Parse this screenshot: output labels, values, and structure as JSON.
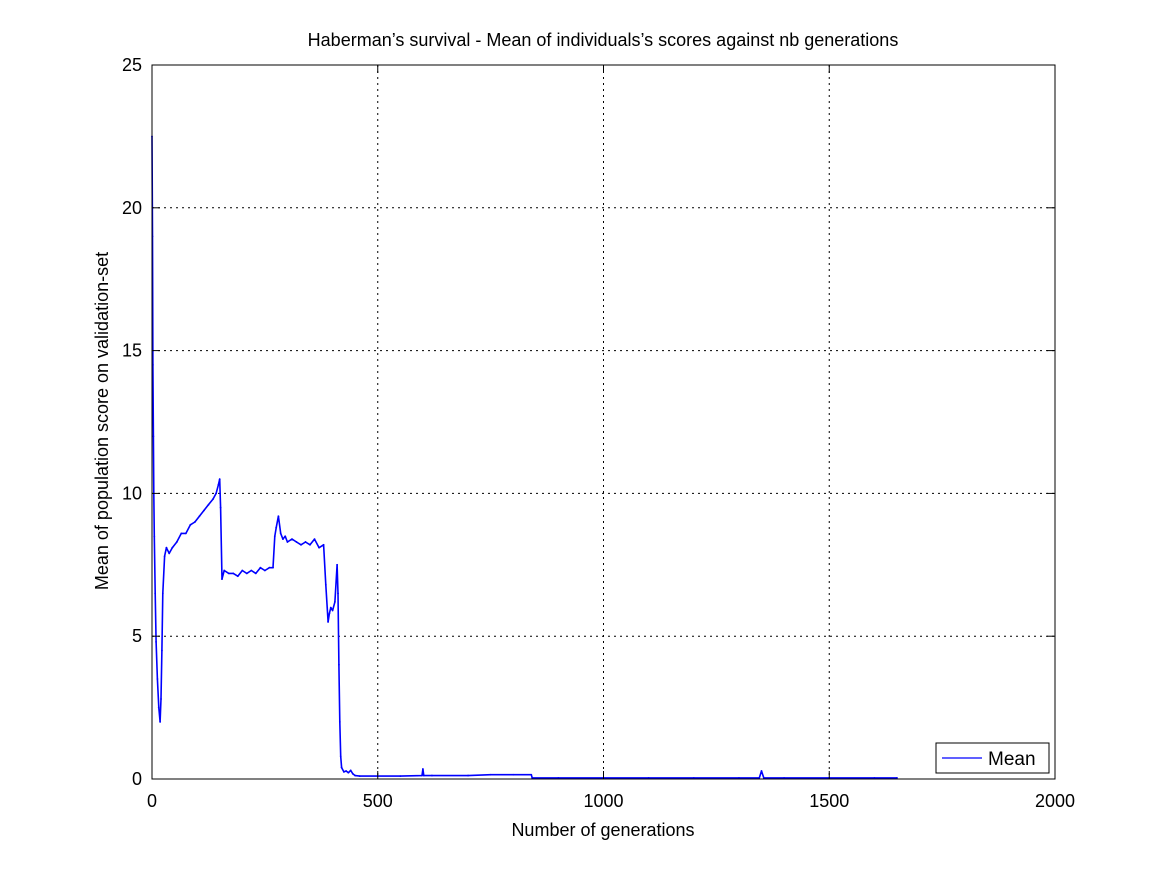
{
  "chart_data": {
    "type": "line",
    "title": "Haberman’s survival - Mean of individuals’s scores against nb generations",
    "xlabel": "Number of generations",
    "ylabel": "Mean of population score on validation-set",
    "xlim": [
      0,
      2000
    ],
    "ylim": [
      0,
      25
    ],
    "xticks": [
      0,
      500,
      1000,
      1500,
      2000
    ],
    "yticks": [
      0,
      5,
      10,
      15,
      20,
      25
    ],
    "grid": true,
    "legend_position": "bottom-right",
    "series": [
      {
        "name": "Mean",
        "color": "#0000ff",
        "x": [
          0,
          1,
          2,
          3,
          4,
          5,
          7,
          9,
          12,
          15,
          18,
          20,
          22,
          24,
          28,
          32,
          38,
          45,
          55,
          65,
          75,
          85,
          95,
          105,
          115,
          125,
          135,
          142,
          147,
          150,
          152,
          155,
          160,
          170,
          180,
          190,
          200,
          210,
          220,
          230,
          240,
          250,
          260,
          268,
          272,
          275,
          280,
          285,
          290,
          295,
          300,
          310,
          320,
          330,
          340,
          350,
          360,
          370,
          380,
          385,
          390,
          393,
          396,
          400,
          405,
          410,
          412,
          414,
          416,
          418,
          420,
          425,
          430,
          435,
          440,
          445,
          450,
          460,
          500,
          550,
          598,
          600,
          602,
          620,
          700,
          750,
          800,
          840,
          842,
          900,
          1000,
          1100,
          1200,
          1300,
          1345,
          1350,
          1355,
          1400,
          1500,
          1600,
          1650
        ],
        "y": [
          22.5,
          19,
          14.5,
          12,
          10,
          8.5,
          6.5,
          4.8,
          3.5,
          2.5,
          2.0,
          2.8,
          4.5,
          6.5,
          7.8,
          8.1,
          7.9,
          8.1,
          8.3,
          8.6,
          8.6,
          8.9,
          9.0,
          9.2,
          9.4,
          9.6,
          9.8,
          10.0,
          10.3,
          10.5,
          9.5,
          7.0,
          7.3,
          7.2,
          7.2,
          7.1,
          7.3,
          7.2,
          7.3,
          7.2,
          7.4,
          7.3,
          7.4,
          7.4,
          8.5,
          8.8,
          9.2,
          8.6,
          8.4,
          8.5,
          8.3,
          8.4,
          8.3,
          8.2,
          8.3,
          8.2,
          8.4,
          8.1,
          8.2,
          6.8,
          5.5,
          5.8,
          6.0,
          5.9,
          6.2,
          7.5,
          6.5,
          4.0,
          2.0,
          0.8,
          0.4,
          0.25,
          0.28,
          0.22,
          0.3,
          0.18,
          0.12,
          0.1,
          0.1,
          0.1,
          0.12,
          0.35,
          0.12,
          0.12,
          0.12,
          0.15,
          0.15,
          0.15,
          0.04,
          0.04,
          0.04,
          0.04,
          0.04,
          0.04,
          0.04,
          0.28,
          0.04,
          0.04,
          0.04,
          0.04,
          0.04
        ]
      }
    ]
  }
}
